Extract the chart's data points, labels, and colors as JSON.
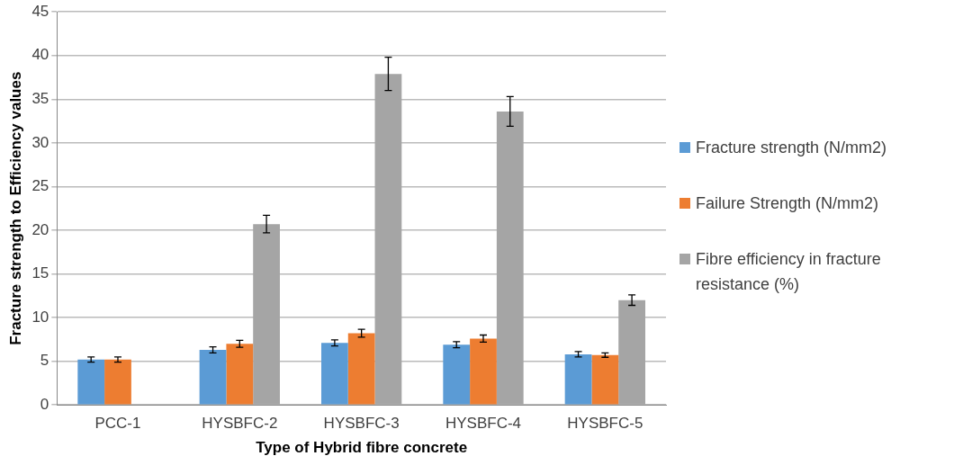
{
  "chart_data": {
    "type": "bar",
    "xlabel": "Type of Hybrid fibre concrete",
    "ylabel": "Fracture strength to Efficiency values",
    "categories": [
      "PCC-1",
      "HYSBFC-2",
      "HYSBFC-3",
      "HYSBFC-4",
      "HYSBFC-5"
    ],
    "series": [
      {
        "name": "Fracture strength (N/mm2)",
        "color": "#5b9bd5",
        "values": [
          5.2,
          6.3,
          7.1,
          6.9,
          5.8
        ],
        "errors": [
          0.3,
          0.35,
          0.35,
          0.35,
          0.3
        ]
      },
      {
        "name": "Failure Strength (N/mm2)",
        "color": "#ed7d31",
        "values": [
          5.2,
          7.0,
          8.2,
          7.6,
          5.7
        ],
        "errors": [
          0.3,
          0.4,
          0.45,
          0.4,
          0.25
        ]
      },
      {
        "name": "Fibre efficiency in fracture resistance (%)",
        "color": "#a5a5a5",
        "values": [
          null,
          20.7,
          37.9,
          33.6,
          12.0
        ],
        "errors": [
          null,
          1.0,
          1.9,
          1.7,
          0.6
        ]
      }
    ],
    "ylim": [
      0,
      45
    ],
    "yticks": [
      0,
      5,
      10,
      15,
      20,
      25,
      30,
      35,
      40,
      45
    ],
    "grid": "y",
    "legend": "right"
  }
}
